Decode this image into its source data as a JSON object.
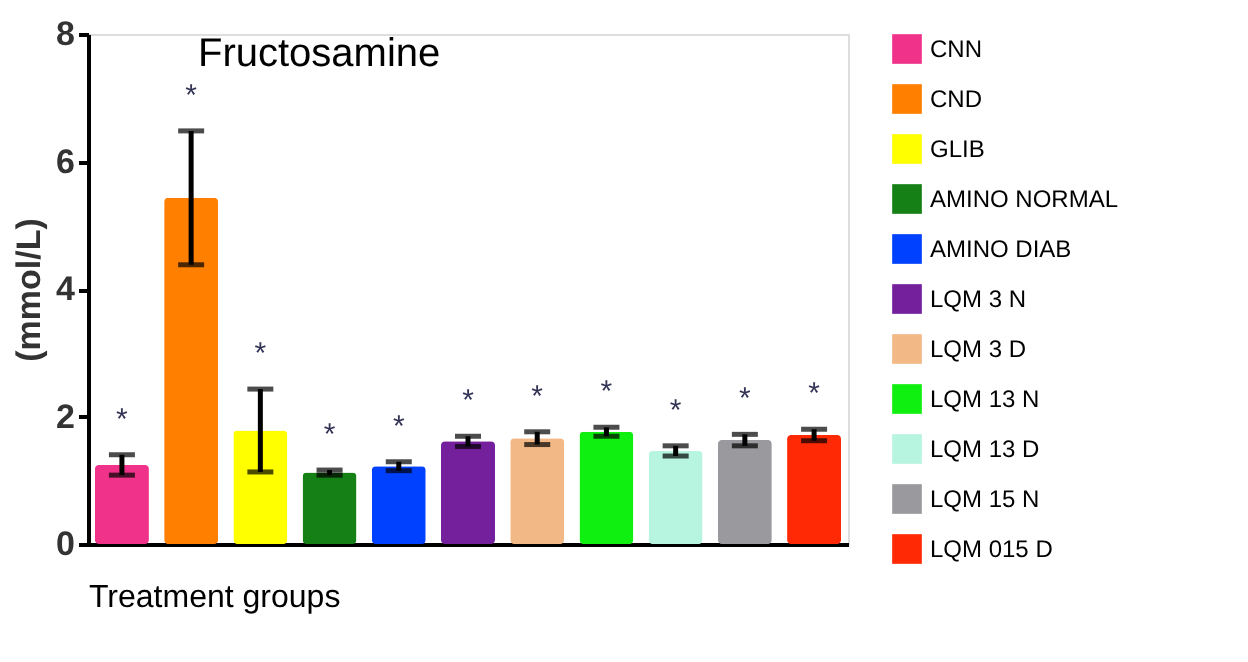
{
  "chart_data": {
    "type": "bar",
    "title": "Fructosamine",
    "xlabel": "Treatment groups",
    "ylabel": "(mmol/L)",
    "categories": [
      null,
      null,
      null,
      null,
      null,
      null,
      null,
      null,
      null,
      null,
      null
    ],
    "series": [
      {
        "name": "CNN",
        "color": "#f0328a",
        "values": [
          1.24,
          null,
          null,
          null,
          null,
          null,
          null,
          null,
          null,
          null,
          null
        ],
        "errors": [
          0.16,
          null,
          null,
          null,
          null,
          null,
          null,
          null,
          null,
          null,
          null
        ]
      },
      {
        "name": "CND",
        "color": "#ff8000",
        "values": [
          null,
          5.43,
          null,
          null,
          null,
          null,
          null,
          null,
          null,
          null,
          null
        ],
        "errors": [
          null,
          1.05,
          null,
          null,
          null,
          null,
          null,
          null,
          null,
          null,
          null
        ]
      },
      {
        "name": "GLIB",
        "color": "#ffff00",
        "values": [
          null,
          null,
          1.78,
          null,
          null,
          null,
          null,
          null,
          null,
          null,
          null
        ],
        "errors": [
          null,
          null,
          0.65,
          null,
          null,
          null,
          null,
          null,
          null,
          null,
          null
        ]
      },
      {
        "name": "AMINO NORMAL",
        "color": "#158015",
        "values": [
          null,
          null,
          null,
          1.12,
          null,
          null,
          null,
          null,
          null,
          null,
          null
        ],
        "errors": [
          null,
          null,
          null,
          0.04,
          null,
          null,
          null,
          null,
          null,
          null,
          null
        ]
      },
      {
        "name": "AMINO DIAB",
        "color": "#0040ff",
        "values": [
          null,
          null,
          null,
          null,
          1.22,
          null,
          null,
          null,
          null,
          null,
          null
        ],
        "errors": [
          null,
          null,
          null,
          null,
          0.07,
          null,
          null,
          null,
          null,
          null,
          null
        ]
      },
      {
        "name": "LQM 3 N",
        "color": "#74209c",
        "values": [
          null,
          null,
          null,
          null,
          null,
          1.61,
          null,
          null,
          null,
          null,
          null
        ],
        "errors": [
          null,
          null,
          null,
          null,
          null,
          0.08,
          null,
          null,
          null,
          null,
          null
        ]
      },
      {
        "name": "LQM 3 D",
        "color": "#f2b885",
        "values": [
          null,
          null,
          null,
          null,
          null,
          null,
          1.66,
          null,
          null,
          null,
          null
        ],
        "errors": [
          null,
          null,
          null,
          null,
          null,
          null,
          0.1,
          null,
          null,
          null,
          null
        ]
      },
      {
        "name": "LQM 13 N",
        "color": "#10f010",
        "values": [
          null,
          null,
          null,
          null,
          null,
          null,
          null,
          1.76,
          null,
          null,
          null
        ],
        "errors": [
          null,
          null,
          null,
          null,
          null,
          null,
          null,
          0.07,
          null,
          null,
          null
        ]
      },
      {
        "name": "LQM 13 D",
        "color": "#b8f5e0",
        "values": [
          null,
          null,
          null,
          null,
          null,
          null,
          null,
          null,
          1.46,
          null,
          null
        ],
        "errors": [
          null,
          null,
          null,
          null,
          null,
          null,
          null,
          null,
          0.08,
          null,
          null
        ]
      },
      {
        "name": "LQM 15 N",
        "color": "#9a9a9e",
        "values": [
          null,
          null,
          null,
          null,
          null,
          null,
          null,
          null,
          null,
          1.63,
          null
        ],
        "errors": [
          null,
          null,
          null,
          null,
          null,
          null,
          null,
          null,
          null,
          0.09,
          null
        ]
      },
      {
        "name": "LQM 015 D",
        "color": "#ff2a05",
        "values": [
          null,
          null,
          null,
          null,
          null,
          null,
          null,
          null,
          null,
          null,
          1.71
        ],
        "errors": [
          null,
          null,
          null,
          null,
          null,
          null,
          null,
          null,
          null,
          null,
          0.09
        ]
      }
    ],
    "annotations": [
      "*",
      "*",
      "*",
      "*",
      "*",
      "*",
      "*",
      "*",
      "*",
      "*",
      "*"
    ],
    "ylim": [
      0,
      8
    ],
    "yticks": [
      0,
      2,
      4,
      6,
      8
    ],
    "grid": false,
    "legend": "right",
    "tick_labels": "y"
  }
}
